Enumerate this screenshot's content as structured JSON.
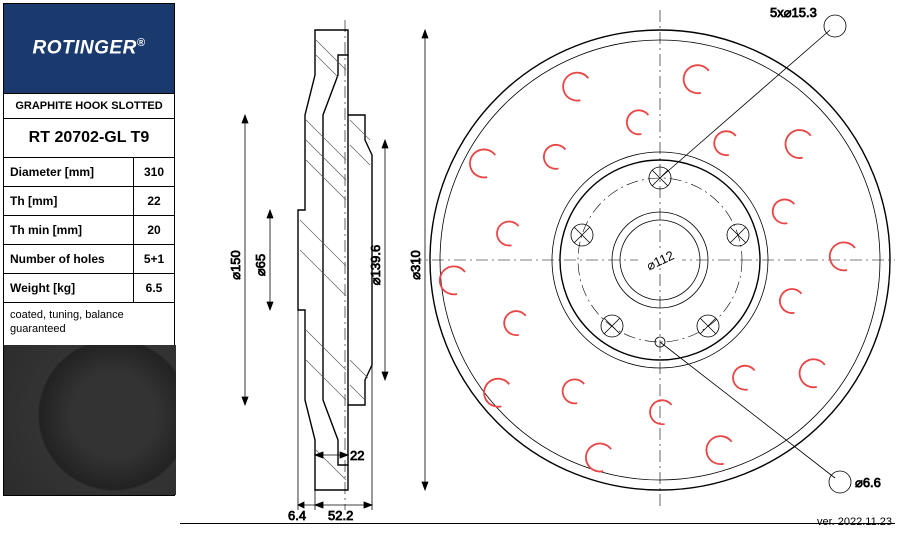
{
  "brand": "ROTINGER",
  "subtitle": "GRAPHITE HOOK SLOTTED",
  "part_number": "RT 20702-GL T9",
  "specs": [
    {
      "label": "Diameter [mm]",
      "value": "310"
    },
    {
      "label": "Th [mm]",
      "value": "22"
    },
    {
      "label": "Th min [mm]",
      "value": "20"
    },
    {
      "label": "Number of holes",
      "value": "5+1"
    },
    {
      "label": "Weight [kg]",
      "value": "6.5"
    }
  ],
  "notes": "coated, tuning,\nbalance guaranteed",
  "version": "ver. 2022.11.23",
  "side_view": {
    "d150": "⌀150",
    "d65": "⌀65",
    "d139_6": "⌀139.6",
    "d310": "⌀310",
    "t22": "22",
    "w6_4": "6.4",
    "w52_2": "52.2"
  },
  "front_view": {
    "bolt_pattern": "5x⌀15.3",
    "d112": "⌀112",
    "d6_6": "⌀6.6"
  },
  "colors": {
    "brand_bg": "#1a3a6e",
    "hook": "#e94545",
    "line": "#000000"
  }
}
